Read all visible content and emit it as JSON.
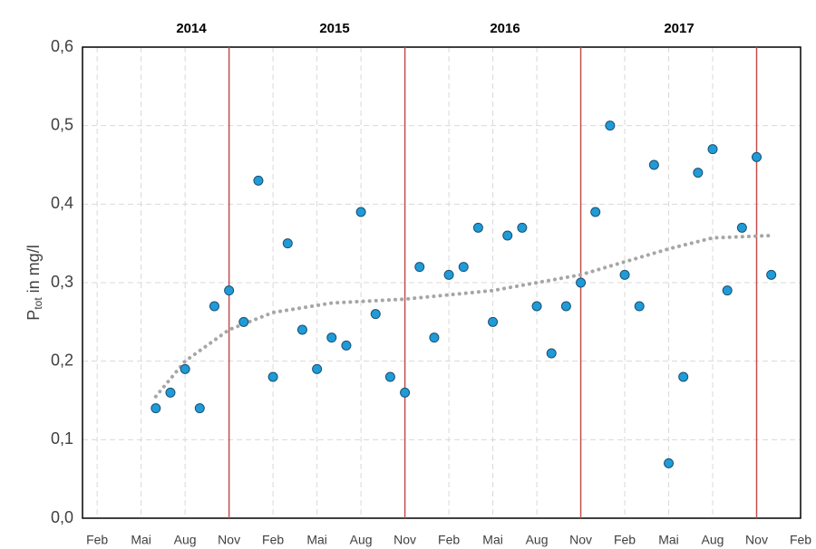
{
  "chart_data": {
    "type": "scatter",
    "y_label": {
      "main": "P",
      "sub": "tot",
      "rest": " in mg/l"
    },
    "year_labels": [
      "2014",
      "2015",
      "2016",
      "2017"
    ],
    "year_dividers": [
      "2014-11",
      "2015-11",
      "2016-11",
      "2017-11"
    ],
    "divider_color": "#c0504d",
    "x": [
      "2014-06",
      "2014-07",
      "2014-08",
      "2014-09",
      "2014-10",
      "2014-11",
      "2014-12",
      "2015-01",
      "2015-02",
      "2015-03",
      "2015-04",
      "2015-05",
      "2015-06",
      "2015-07",
      "2015-08",
      "2015-09",
      "2015-10",
      "2015-11",
      "2015-12",
      "2016-01",
      "2016-02",
      "2016-03",
      "2016-04",
      "2016-05",
      "2016-06",
      "2016-07",
      "2016-08",
      "2016-09",
      "2016-10",
      "2016-11",
      "2016-12",
      "2017-01",
      "2017-02",
      "2017-03",
      "2017-04",
      "2017-05",
      "2017-06",
      "2017-07",
      "2017-08",
      "2017-09",
      "2017-10",
      "2017-11",
      "2017-12"
    ],
    "values": [
      0.14,
      0.16,
      0.19,
      0.14,
      0.27,
      0.29,
      0.25,
      0.43,
      0.18,
      0.35,
      0.24,
      0.19,
      0.23,
      0.22,
      0.39,
      0.26,
      0.18,
      0.16,
      0.32,
      0.23,
      0.31,
      0.32,
      0.37,
      0.25,
      0.36,
      0.37,
      0.27,
      0.21,
      0.27,
      0.3,
      0.39,
      0.5,
      0.31,
      0.27,
      0.45,
      0.07,
      0.18,
      0.44,
      0.47,
      0.29,
      0.37,
      0.46,
      0.31
    ],
    "color": "#1f9bd8",
    "trendline": {
      "x": [
        "2014-06",
        "2014-08",
        "2014-11",
        "2015-02",
        "2015-06",
        "2015-11",
        "2016-05",
        "2016-11",
        "2017-05",
        "2017-08",
        "2017-12"
      ],
      "values": [
        0.155,
        0.2,
        0.24,
        0.262,
        0.274,
        0.279,
        0.29,
        0.31,
        0.343,
        0.357,
        0.36
      ],
      "color": "#a6a6a6"
    },
    "xlim": [
      "2014-01",
      "2018-02"
    ],
    "xticks": [
      {
        "value": "2014-02",
        "label": "Feb"
      },
      {
        "value": "2014-05",
        "label": "Mai"
      },
      {
        "value": "2014-08",
        "label": "Aug"
      },
      {
        "value": "2014-11",
        "label": "Nov"
      },
      {
        "value": "2015-02",
        "label": "Feb"
      },
      {
        "value": "2015-05",
        "label": "Mai"
      },
      {
        "value": "2015-08",
        "label": "Aug"
      },
      {
        "value": "2015-11",
        "label": "Nov"
      },
      {
        "value": "2016-02",
        "label": "Feb"
      },
      {
        "value": "2016-05",
        "label": "Mai"
      },
      {
        "value": "2016-08",
        "label": "Aug"
      },
      {
        "value": "2016-11",
        "label": "Nov"
      },
      {
        "value": "2017-02",
        "label": "Feb"
      },
      {
        "value": "2017-05",
        "label": "Mai"
      },
      {
        "value": "2017-08",
        "label": "Aug"
      },
      {
        "value": "2017-11",
        "label": "Nov"
      },
      {
        "value": "2018-02",
        "label": "Feb"
      }
    ],
    "ylim": [
      0,
      0.6
    ],
    "yticks": [
      {
        "value": 0,
        "label": "0,0"
      },
      {
        "value": 0.1,
        "label": "0,1"
      },
      {
        "value": 0.2,
        "label": "0,2"
      },
      {
        "value": 0.3,
        "label": "0,3"
      },
      {
        "value": 0.4,
        "label": "0,4"
      },
      {
        "value": 0.5,
        "label": "0,5"
      },
      {
        "value": 0.6,
        "label": "0,6"
      }
    ],
    "grid": true
  }
}
